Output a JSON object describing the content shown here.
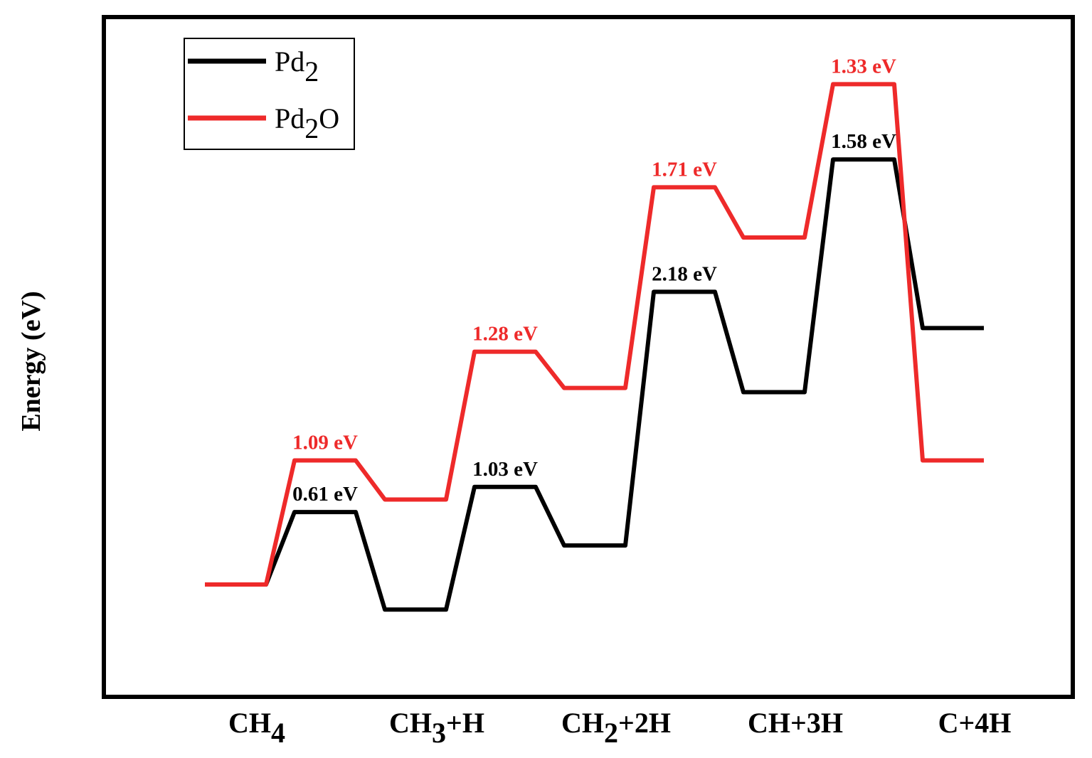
{
  "chart_data": {
    "type": "line",
    "title": "",
    "ylabel": "Energy (eV)",
    "xlabel": "",
    "grid": false,
    "y_ticks_shown": false,
    "legend_position": "top-left",
    "categories": [
      {
        "base": "CH",
        "sub": "4",
        "rest": ""
      },
      {
        "base": "CH",
        "sub": "3",
        "rest": "+H"
      },
      {
        "base": "CH",
        "sub": "2",
        "rest": "+2H"
      },
      {
        "base": "CH+3H",
        "sub": "",
        "rest": ""
      },
      {
        "base": "C+4H",
        "sub": "",
        "rest": ""
      }
    ],
    "series": [
      {
        "name": {
          "base": "Pd",
          "sub": "2",
          "rest": ""
        },
        "color": "#000000",
        "intermediates": [
          0.0,
          -0.18,
          0.28,
          1.38,
          1.84
        ],
        "transition_states": [
          0.52,
          0.7,
          2.1,
          3.05
        ],
        "barrier_labels": [
          "0.61 eV",
          "1.03 eV",
          "2.18 eV",
          "1.58 eV"
        ]
      },
      {
        "name": {
          "base": "Pd",
          "sub": "2",
          "rest": "O"
        },
        "color": "#ee2a2a",
        "intermediates": [
          0.0,
          0.61,
          1.41,
          2.49,
          0.89
        ],
        "transition_states": [
          0.89,
          1.67,
          2.85,
          3.59
        ],
        "barrier_labels": [
          "1.09 eV",
          "1.28 eV",
          "1.71 eV",
          "1.33 eV"
        ]
      }
    ]
  }
}
